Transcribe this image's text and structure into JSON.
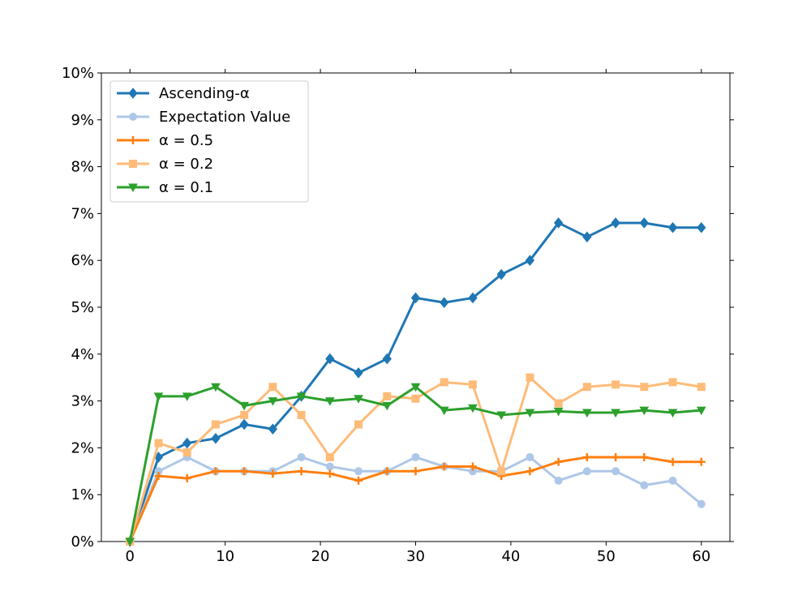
{
  "chart_data": {
    "type": "line",
    "title": "",
    "xlabel": "",
    "ylabel": "",
    "x": [
      0,
      3,
      6,
      9,
      12,
      15,
      18,
      21,
      24,
      27,
      30,
      33,
      36,
      39,
      42,
      45,
      48,
      51,
      54,
      57,
      60
    ],
    "xlim": [
      -3,
      63
    ],
    "ylim": [
      0,
      10
    ],
    "xticks": [
      0,
      10,
      20,
      30,
      40,
      50,
      60
    ],
    "xtick_labels": [
      "0",
      "10",
      "20",
      "30",
      "40",
      "50",
      "60"
    ],
    "yticks": [
      0,
      1,
      2,
      3,
      4,
      5,
      6,
      7,
      8,
      9,
      10
    ],
    "ytick_labels": [
      "0%",
      "1%",
      "2%",
      "3%",
      "4%",
      "5%",
      "6%",
      "7%",
      "8%",
      "9%",
      "10%"
    ],
    "legend_position": "top-left",
    "grid": false,
    "series": [
      {
        "name": "Ascending-α",
        "color": "#1f77b4",
        "marker": "diamond",
        "values": [
          0,
          1.8,
          2.1,
          2.2,
          2.5,
          2.4,
          3.1,
          3.9,
          3.6,
          3.9,
          5.2,
          5.1,
          5.2,
          5.7,
          6.0,
          6.8,
          6.5,
          6.8,
          6.8,
          6.7,
          6.7
        ]
      },
      {
        "name": "Expectation Value",
        "color": "#aec7e8",
        "marker": "circle",
        "values": [
          0,
          1.5,
          1.8,
          1.5,
          1.5,
          1.5,
          1.8,
          1.6,
          1.5,
          1.5,
          1.8,
          1.6,
          1.5,
          1.5,
          1.8,
          1.3,
          1.5,
          1.5,
          1.2,
          1.3,
          0.8
        ]
      },
      {
        "name": "α = 0.5",
        "color": "#ff7f0e",
        "marker": "plus",
        "values": [
          0,
          1.4,
          1.35,
          1.5,
          1.5,
          1.45,
          1.5,
          1.45,
          1.3,
          1.5,
          1.5,
          1.6,
          1.6,
          1.4,
          1.5,
          1.7,
          1.8,
          1.8,
          1.8,
          1.7,
          1.7
        ]
      },
      {
        "name": "α = 0.2",
        "color": "#ffbb78",
        "marker": "square",
        "values": [
          0,
          2.1,
          1.9,
          2.5,
          2.7,
          3.3,
          2.7,
          1.8,
          2.5,
          3.1,
          3.05,
          3.4,
          3.35,
          1.5,
          3.5,
          2.95,
          3.3,
          3.35,
          3.3,
          3.4,
          3.3
        ]
      },
      {
        "name": "α = 0.1",
        "color": "#2ca02c",
        "marker": "triangle-down",
        "values": [
          0,
          3.1,
          3.1,
          3.3,
          2.9,
          3.0,
          3.1,
          3.0,
          3.05,
          2.9,
          3.3,
          2.8,
          2.85,
          2.7,
          2.75,
          2.78,
          2.75,
          2.75,
          2.8,
          2.75,
          2.8
        ]
      }
    ]
  }
}
